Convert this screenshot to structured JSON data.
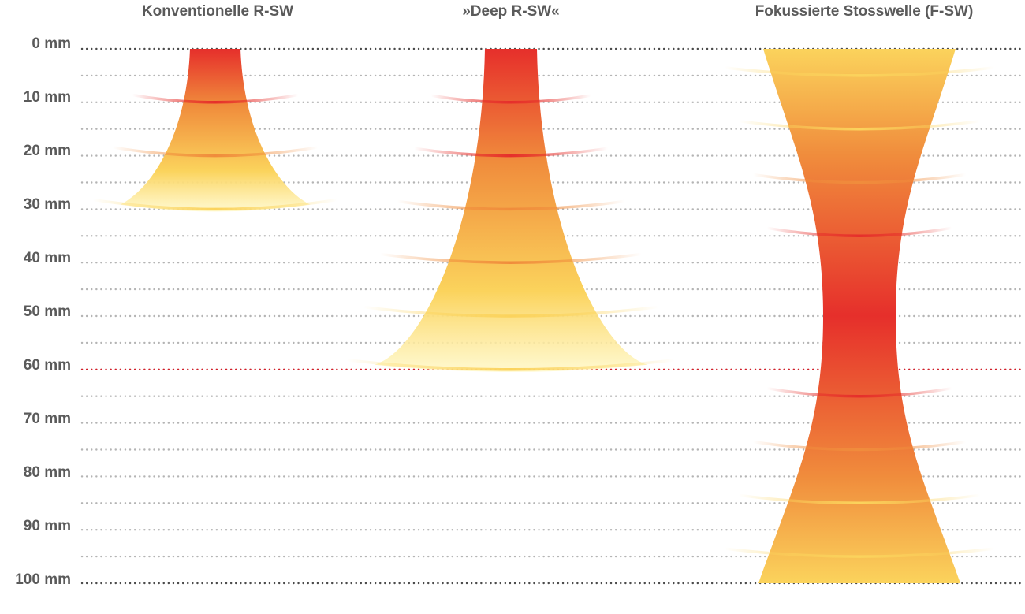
{
  "columns": [
    {
      "title": "Konventionelle R-SW",
      "type": "radial",
      "max_depth_mm": 30,
      "wavefront_depths_mm": [
        10,
        20,
        30
      ]
    },
    {
      "title": "»Deep R-SW«",
      "type": "radial",
      "max_depth_mm": 60,
      "wavefront_depths_mm": [
        10,
        20,
        30,
        40,
        50,
        60
      ]
    },
    {
      "title": "Fokussierte Stosswelle (F-SW)",
      "type": "focused",
      "focus_depth_mm": 50,
      "max_depth_mm": 100,
      "wavefront_depths_mm": [
        5,
        15,
        25,
        35,
        65,
        75,
        85,
        95
      ]
    }
  ],
  "depth_axis": {
    "unit": "mm",
    "labels": [
      "0 mm",
      "10 mm",
      "20 mm",
      "30 mm",
      "40 mm",
      "50 mm",
      "60 mm",
      "70 mm",
      "80 mm",
      "90 mm",
      "100 mm"
    ],
    "highlight_depth_mm": 60
  },
  "colors": {
    "red": "#e62f2b",
    "orange": "#f08c3c",
    "yellow": "#fbd35c",
    "pale_yellow": "#fff7c2",
    "grid_dot": "#b4b4b4",
    "axis_dot": "#4a4a4a",
    "highlight_dot": "#d0202a",
    "label": "#5a5a5a"
  }
}
